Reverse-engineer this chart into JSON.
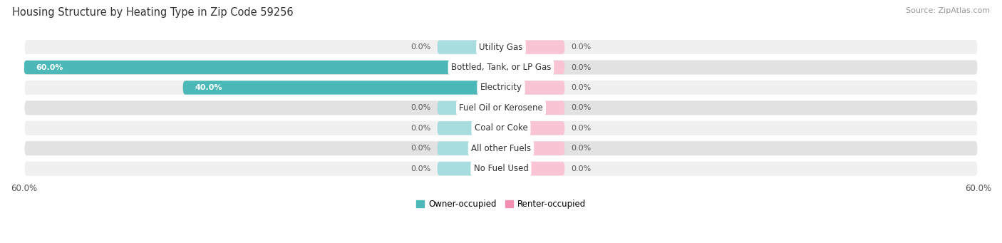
{
  "title": "Housing Structure by Heating Type in Zip Code 59256",
  "source": "Source: ZipAtlas.com",
  "categories": [
    "Utility Gas",
    "Bottled, Tank, or LP Gas",
    "Electricity",
    "Fuel Oil or Kerosene",
    "Coal or Coke",
    "All other Fuels",
    "No Fuel Used"
  ],
  "owner_values": [
    0.0,
    60.0,
    40.0,
    0.0,
    0.0,
    0.0,
    0.0
  ],
  "renter_values": [
    0.0,
    0.0,
    0.0,
    0.0,
    0.0,
    0.0,
    0.0
  ],
  "owner_color": "#4db8b8",
  "renter_color": "#f48fb1",
  "owner_stub_color": "#a8dde0",
  "renter_stub_color": "#f9c5d5",
  "row_bg_light": "#f0f0f0",
  "row_bg_dark": "#e2e2e2",
  "xlim": 60.0,
  "stub_size": 8.0,
  "title_fontsize": 10.5,
  "source_fontsize": 8,
  "label_fontsize": 8.5,
  "value_fontsize": 8.0,
  "tick_fontsize": 8.5,
  "legend_fontsize": 8.5,
  "owner_label": "Owner-occupied",
  "renter_label": "Renter-occupied"
}
